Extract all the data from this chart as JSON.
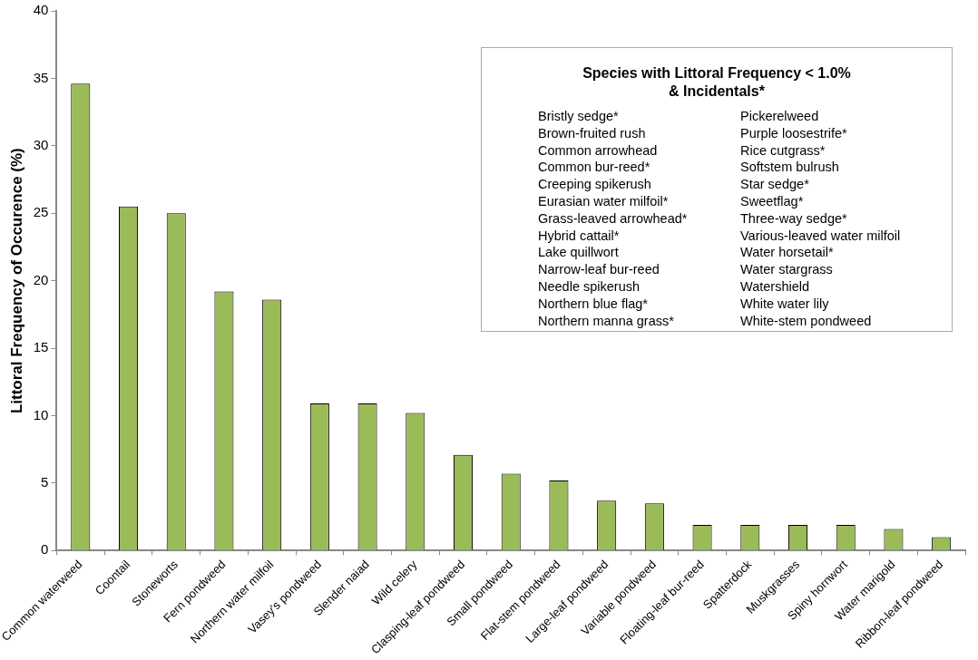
{
  "chart_data": {
    "type": "bar",
    "ylabel": "Littoral Frequency of Occurence (%)",
    "categories": [
      "Common waterweed",
      "Coontail",
      "Stoneworts",
      "Fern pondweed",
      "Northern water milfoil",
      "Vasey's pondweed",
      "Slender naiad",
      "Wild celery",
      "Clasping-leaf pondweed",
      "Small pondweed",
      "Flat-stem pondweed",
      "Large-leaf pondweed",
      "Variable pondweed",
      "Floating-leaf bur-reed",
      "Spatterdock",
      "Muskgrasses",
      "Spiny hornwort",
      "Water marigold",
      "Ribbon-leaf pondweed"
    ],
    "values": [
      34.6,
      25.5,
      25.0,
      19.2,
      18.6,
      10.9,
      10.9,
      10.2,
      7.1,
      5.7,
      5.2,
      3.7,
      3.5,
      1.9,
      1.9,
      1.9,
      1.9,
      1.6,
      1.0
    ],
    "color": "#9bbb59",
    "ylim": [
      0,
      40
    ],
    "yticks": [
      0,
      5,
      10,
      15,
      20,
      25,
      30,
      35,
      40
    ],
    "grid": false,
    "legend": false,
    "annotations": [
      "Species with Littoral Frequency < 1.0%\n& Incidentals*",
      "Bristly sedge*",
      "Brown-fruited rush",
      "Common arrowhead",
      "Common bur-reed*",
      "Creeping spikerush",
      "Eurasian water milfoil*",
      "Grass-leaved arrowhead*",
      "Hybrid cattail*",
      "Lake quillwort",
      "Narrow-leaf bur-reed",
      "Needle spikerush",
      "Northern blue flag*",
      "Northern manna grass*",
      "Pickerelweed",
      "Purple loosestrife*",
      "Rice cutgrass*",
      "Softstem bulrush",
      "Star sedge*",
      "Sweetflag*",
      "Three-way sedge*",
      "Various-leaved water milfoil",
      "Water horsetail*",
      "Water stargrass",
      "Watershield",
      "White water lily",
      "White-stem pondweed"
    ]
  }
}
